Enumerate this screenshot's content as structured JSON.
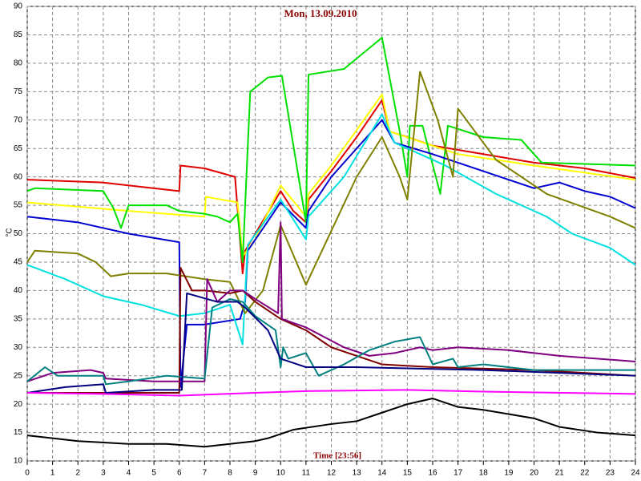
{
  "chart_data": {
    "type": "line",
    "title": "Mon, 13.09.2010",
    "x_label": "Time [23:56]",
    "y_label": "°C",
    "xlim": [
      0,
      24
    ],
    "ylim": [
      10,
      90
    ],
    "xticks": [
      0,
      1,
      2,
      3,
      4,
      5,
      6,
      7,
      8,
      9,
      10,
      11,
      12,
      13,
      14,
      15,
      16,
      17,
      18,
      19,
      20,
      21,
      22,
      23,
      24
    ],
    "yticks": [
      10,
      15,
      20,
      25,
      30,
      35,
      40,
      45,
      50,
      55,
      60,
      65,
      70,
      75,
      80,
      85,
      90
    ],
    "grid": true,
    "series": [
      {
        "color": "#e00000",
        "x": [
          0,
          3,
          6,
          6.05,
          7,
          8.2,
          8.5,
          8.6,
          9,
          10,
          10.5,
          11,
          11.1,
          12,
          13,
          14,
          14.3,
          15,
          16,
          18,
          20,
          22,
          24
        ],
        "values": [
          59.5,
          59,
          57.5,
          62,
          61.5,
          60,
          43,
          47,
          50,
          57.5,
          54,
          52,
          56,
          61,
          67,
          73.5,
          68,
          67,
          65.5,
          64,
          62.5,
          61.5,
          59.8
        ]
      },
      {
        "color": "#ffff00",
        "x": [
          0,
          4,
          7,
          7.05,
          8.3,
          8.5,
          9,
          10,
          11,
          11.1,
          12,
          14,
          14.3,
          17,
          20,
          24
        ],
        "values": [
          55.5,
          54,
          53,
          56.5,
          55.5,
          46,
          49,
          58.5,
          53,
          57,
          62,
          74.5,
          68,
          64,
          62,
          59.5
        ]
      },
      {
        "color": "#00e000",
        "x": [
          0,
          0.3,
          3,
          3.4,
          3.7,
          4,
          5.5,
          6,
          7,
          7.5,
          8,
          8.3,
          8.5,
          8.8,
          9.5,
          10.05,
          11,
          11.1,
          12.5,
          14,
          14.7,
          15,
          15.1,
          15.6,
          16.3,
          16.6,
          18,
          19.5,
          20.3,
          24
        ],
        "values": [
          57.5,
          58,
          57.5,
          54.5,
          51,
          55,
          55,
          54,
          53.5,
          53,
          52,
          53.5,
          45,
          75,
          77.5,
          77.8,
          52,
          78,
          79,
          84.5,
          68,
          60,
          69,
          69,
          57,
          69,
          67,
          66.5,
          62.5,
          62
        ]
      },
      {
        "color": "#0000d0",
        "x": [
          0,
          2,
          4,
          6,
          6.05,
          6.3,
          7,
          8.4,
          8.6,
          8.7,
          10,
          11,
          11.1,
          12,
          14,
          14.5,
          16,
          18,
          20,
          21,
          22,
          23,
          24
        ],
        "values": [
          53,
          52,
          50,
          48.5,
          23,
          34,
          34,
          35,
          38,
          47,
          55.5,
          51,
          54,
          60,
          70,
          66,
          64,
          61,
          58,
          59,
          57.5,
          56.5,
          54.5
        ]
      },
      {
        "color": "#00e0e0",
        "x": [
          0,
          1.5,
          3,
          4.5,
          6,
          7,
          8,
          8.5,
          8.7,
          10,
          11,
          11.1,
          12.5,
          14,
          14.5,
          16.5,
          18.5,
          20.5,
          21.5,
          23,
          24
        ],
        "values": [
          44.5,
          42,
          39,
          37.5,
          35.5,
          36,
          37.5,
          30.5,
          48,
          56,
          49,
          53,
          60,
          71,
          66,
          62,
          57,
          53,
          50,
          47.5,
          44.5
        ]
      },
      {
        "color": "#808000",
        "x": [
          0,
          0.3,
          2,
          2.7,
          3.3,
          4,
          5.5,
          7,
          8,
          8.6,
          9.3,
          10,
          11,
          13,
          14,
          14.7,
          15,
          15.5,
          16.2,
          16.8,
          17,
          18.5,
          19.5,
          20.5,
          23,
          24
        ],
        "values": [
          45,
          47,
          46.5,
          45,
          42.5,
          43,
          43,
          42,
          41.5,
          36,
          40,
          51.5,
          41,
          60,
          67,
          60,
          56,
          78.5,
          70,
          60,
          72,
          63,
          60,
          57,
          53,
          51
        ]
      },
      {
        "color": "#800000",
        "x": [
          0,
          3,
          6,
          6.05,
          6.5,
          7,
          8,
          8.5,
          9,
          10,
          11,
          12,
          14,
          16,
          20,
          24
        ],
        "values": [
          22,
          22,
          22,
          44,
          40,
          40,
          39.5,
          40,
          38,
          35,
          33,
          30,
          27,
          26.5,
          26,
          25
        ]
      },
      {
        "color": "#800080",
        "x": [
          0,
          1,
          2.5,
          3,
          3.1,
          5,
          7,
          7.1,
          7.5,
          8,
          8.5,
          9,
          9.9,
          10,
          10.05,
          11,
          12.5,
          13.5,
          14.5,
          15.5,
          16,
          17,
          19,
          21,
          24
        ],
        "values": [
          24,
          25.5,
          26,
          25.5,
          24.5,
          24,
          24,
          42,
          38,
          40,
          40,
          38.5,
          36,
          52,
          35,
          33.5,
          30,
          28.5,
          29,
          30,
          29.5,
          30,
          29.5,
          28.5,
          27.5
        ]
      },
      {
        "color": "#008080",
        "x": [
          0,
          0.7,
          1.2,
          3,
          3.1,
          4,
          5.5,
          7,
          7.3,
          8,
          8.5,
          9,
          9.8,
          10,
          10.1,
          10.3,
          11,
          11.5,
          12.5,
          13.5,
          14.5,
          15.5,
          16,
          16.8,
          17,
          18,
          20,
          24
        ],
        "values": [
          24,
          26.5,
          25,
          25,
          23.5,
          24,
          25,
          24.5,
          37,
          38.5,
          38,
          35.5,
          33,
          26.5,
          30,
          28,
          29,
          25,
          27,
          29.5,
          31,
          31.8,
          27,
          28,
          26.5,
          27,
          26,
          26
        ]
      },
      {
        "color": "#000080",
        "x": [
          0,
          1.5,
          3,
          3.1,
          5,
          6.1,
          6.3,
          6.7,
          7.5,
          8.3,
          8.6,
          9.5,
          10,
          11,
          13,
          15,
          18,
          21,
          24
        ],
        "values": [
          22,
          23,
          23.5,
          22,
          22.5,
          22.5,
          39.5,
          39,
          38,
          38,
          37,
          33,
          28,
          26.5,
          26.5,
          26.3,
          26,
          25.5,
          25
        ]
      },
      {
        "color": "#ff00ff",
        "x": [
          0,
          3,
          6,
          9,
          11,
          15,
          18,
          24
        ],
        "values": [
          22,
          21.8,
          21.5,
          22,
          22.3,
          22.5,
          22.2,
          21.8
        ]
      },
      {
        "color": "#000000",
        "x": [
          0,
          1,
          2,
          4,
          5.5,
          7,
          8,
          9,
          9.5,
          10.5,
          12,
          13,
          14,
          15,
          16,
          17,
          18,
          20,
          21,
          22.5,
          24
        ],
        "values": [
          14.5,
          14,
          13.5,
          13,
          13,
          12.5,
          13,
          13.5,
          14,
          15.5,
          16.5,
          17,
          18.5,
          20,
          21,
          19.5,
          19,
          17.5,
          16,
          15,
          14.5
        ]
      }
    ]
  }
}
